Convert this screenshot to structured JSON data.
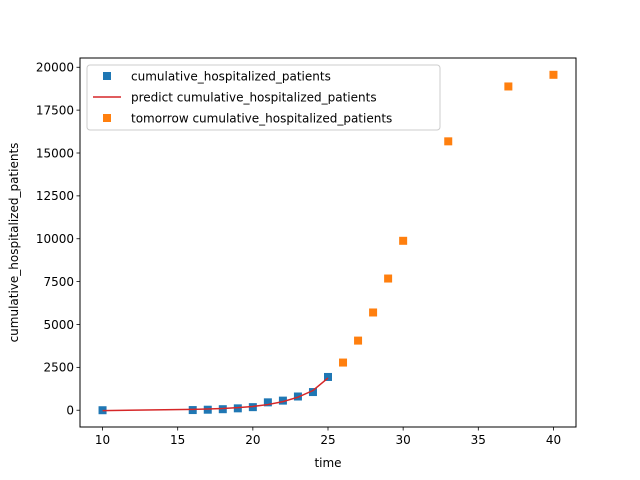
{
  "chart_data": {
    "type": "scatter",
    "xlabel": "time",
    "ylabel": "cumulative_hospitalized_patients",
    "xlim": [
      8.5,
      41.5
    ],
    "ylim": [
      -978,
      20540
    ],
    "xticks": [
      10,
      15,
      20,
      25,
      30,
      35,
      40
    ],
    "yticks": [
      0,
      2500,
      5000,
      7500,
      10000,
      12500,
      15000,
      17500,
      20000
    ],
    "legend_position": "top-left",
    "series": [
      {
        "name": "cumulative_hospitalized_patients",
        "kind": "scatter",
        "marker": "square",
        "color": "#1f77b4",
        "x": [
          10,
          16,
          17,
          18,
          19,
          20,
          21,
          22,
          23,
          24,
          25
        ],
        "y": [
          0,
          10,
          30,
          60,
          110,
          180,
          460,
          560,
          800,
          1060,
          1940
        ]
      },
      {
        "name": "predict cumulative_hospitalized_patients",
        "kind": "line",
        "color": "#d62728",
        "x": [
          10,
          16,
          17,
          18,
          19,
          20,
          21,
          22,
          23,
          24,
          25
        ],
        "y": [
          -20,
          50,
          70,
          100,
          150,
          220,
          330,
          500,
          760,
          1150,
          1880
        ]
      },
      {
        "name": "tomorrow cumulative_hospitalized_patients",
        "kind": "scatter",
        "marker": "square",
        "color": "#ff7f0e",
        "x": [
          26,
          27,
          28,
          29,
          30,
          33,
          37,
          40
        ],
        "y": [
          2780,
          4060,
          5700,
          7680,
          9880,
          15680,
          18880,
          19560
        ]
      }
    ]
  }
}
